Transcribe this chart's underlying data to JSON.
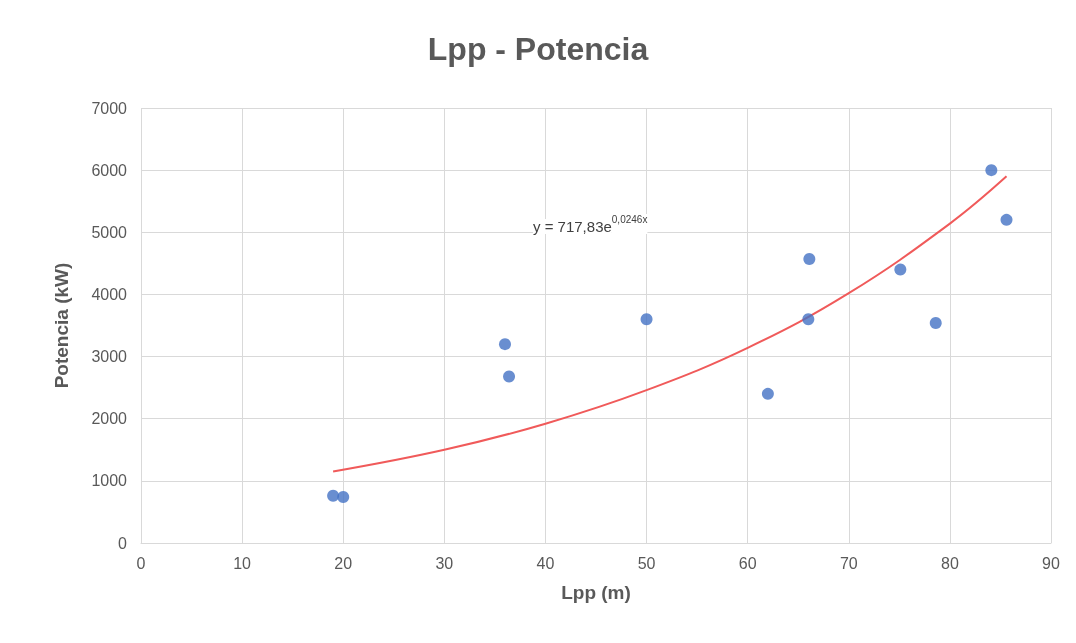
{
  "chart_data": {
    "type": "scatter",
    "title": "Lpp - Potencia",
    "xlabel": "Lpp (m)",
    "ylabel": "Potencia (kW)",
    "xlim": [
      0,
      90
    ],
    "xticks": [
      0,
      10,
      20,
      30,
      40,
      50,
      60,
      70,
      80,
      90
    ],
    "ylim": [
      0,
      7000
    ],
    "yticks": [
      0,
      1000,
      2000,
      3000,
      4000,
      5000,
      6000,
      7000
    ],
    "grid": true,
    "marker": "circle",
    "annotations": [
      "y = 717,83e$^{0,0246x}$"
    ],
    "series": [
      {
        "color": "#4472c4",
        "x": [
          19,
          20,
          36,
          36.4,
          50,
          62,
          66.1,
          66,
          75.1,
          78.6,
          84.1,
          85.6
        ],
        "values": [
          760,
          740,
          3200,
          2680,
          3600,
          2400,
          4570,
          3600,
          4400,
          3540,
          6000,
          5200
        ]
      },
      {
        "type": "line",
        "color": "#f05a5a",
        "marker": "none",
        "x": [
          19,
          30,
          40,
          50,
          60,
          70,
          80,
          85.6
        ],
        "values": [
          1150,
          1500,
          1920,
          2460,
          3140,
          4020,
          5140,
          5900
        ]
      }
    ]
  }
}
